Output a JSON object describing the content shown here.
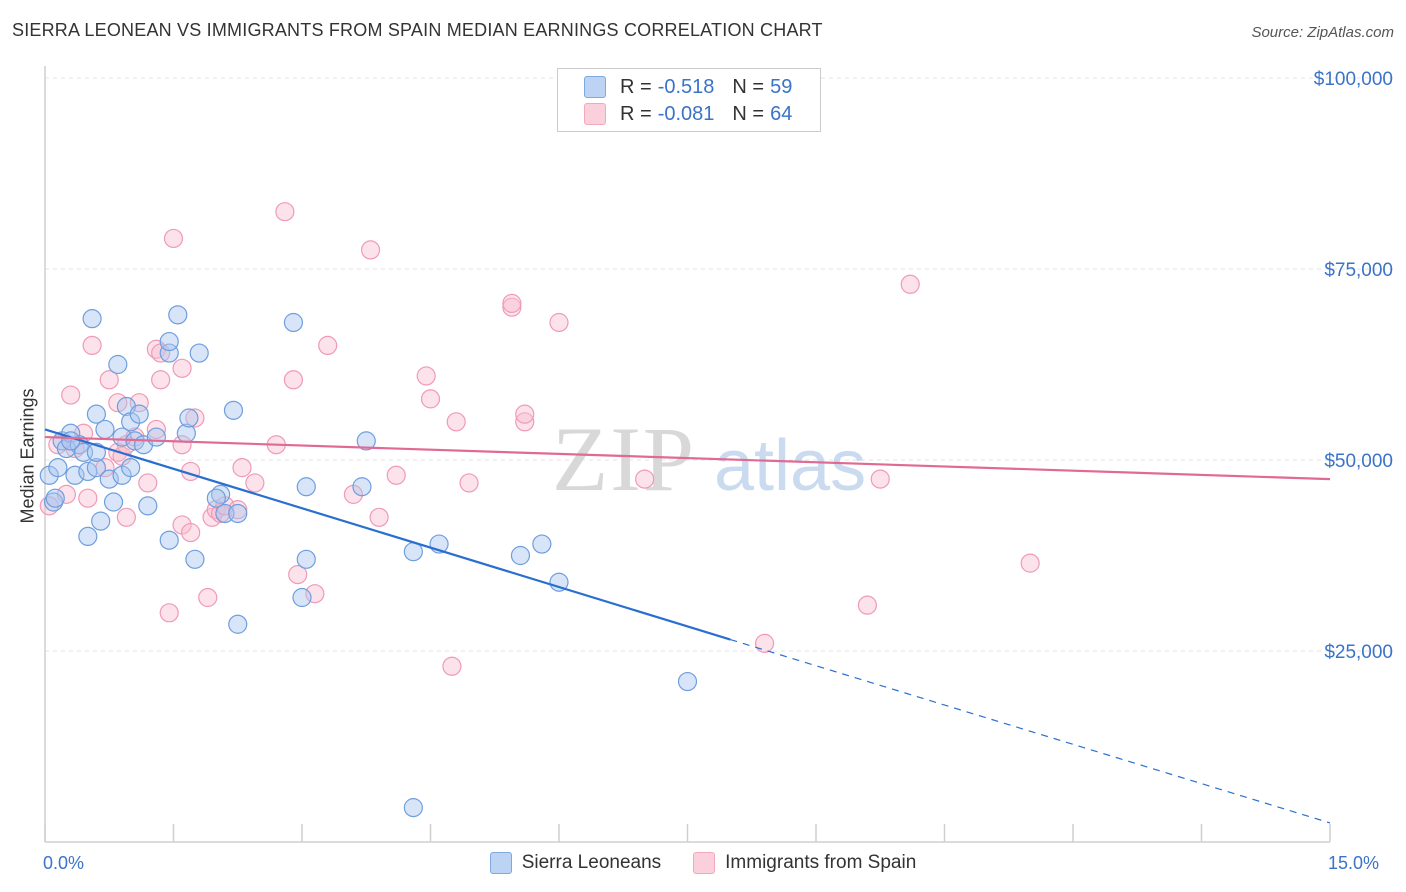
{
  "title": "SIERRA LEONEAN VS IMMIGRANTS FROM SPAIN MEDIAN EARNINGS CORRELATION CHART",
  "source": "Source: ZipAtlas.com",
  "legend": {
    "r_label": "R =",
    "n_label": "N =",
    "series": [
      {
        "r": "-0.518",
        "n": "59"
      },
      {
        "r": "-0.081",
        "n": "64"
      }
    ]
  },
  "watermark": {
    "zip": "ZIP",
    "atlas": "atlas"
  },
  "chart_data": {
    "type": "scatter",
    "title": "SIERRA LEONEAN VS IMMIGRANTS FROM SPAIN MEDIAN EARNINGS CORRELATION CHART",
    "xlabel": "",
    "ylabel": "Median Earnings",
    "xlim": [
      0,
      15
    ],
    "ylim": [
      0,
      105000
    ],
    "x_tick_labels": [
      "0.0%",
      "15.0%"
    ],
    "y_ticks": [
      25000,
      50000,
      75000,
      100000
    ],
    "y_tick_labels": [
      "$25,000",
      "$50,000",
      "$75,000",
      "$100,000"
    ],
    "grid": "horizontal dashed",
    "series": [
      {
        "name": "Sierra Leoneans",
        "color": "#7fa8e0",
        "line_color": "#2a6fd0",
        "points": [
          [
            0.05,
            48000
          ],
          [
            0.1,
            44500
          ],
          [
            0.12,
            45000
          ],
          [
            0.2,
            52500
          ],
          [
            0.25,
            51500
          ],
          [
            0.3,
            53500
          ],
          [
            0.35,
            48000
          ],
          [
            0.4,
            52000
          ],
          [
            0.45,
            51000
          ],
          [
            0.5,
            48500
          ],
          [
            0.5,
            40000
          ],
          [
            0.55,
            68500
          ],
          [
            0.6,
            49000
          ],
          [
            0.6,
            56000
          ],
          [
            0.65,
            42000
          ],
          [
            0.7,
            54000
          ],
          [
            0.75,
            47500
          ],
          [
            0.8,
            44500
          ],
          [
            0.85,
            62500
          ],
          [
            0.9,
            48000
          ],
          [
            0.9,
            53000
          ],
          [
            0.95,
            57000
          ],
          [
            1.0,
            55000
          ],
          [
            1.05,
            52500
          ],
          [
            1.1,
            56000
          ],
          [
            1.15,
            52000
          ],
          [
            1.2,
            44000
          ],
          [
            1.3,
            53000
          ],
          [
            1.45,
            39500
          ],
          [
            1.45,
            64000
          ],
          [
            1.45,
            65500
          ],
          [
            1.55,
            69000
          ],
          [
            1.65,
            53500
          ],
          [
            1.68,
            55500
          ],
          [
            1.75,
            37000
          ],
          [
            1.8,
            64000
          ],
          [
            2.05,
            45500
          ],
          [
            2.1,
            43000
          ],
          [
            2.2,
            56500
          ],
          [
            2.25,
            43000
          ],
          [
            2.25,
            28500
          ],
          [
            2.9,
            68000
          ],
          [
            3.0,
            32000
          ],
          [
            3.05,
            37000
          ],
          [
            3.05,
            46500
          ],
          [
            3.7,
            46500
          ],
          [
            3.75,
            52500
          ],
          [
            4.3,
            4500
          ],
          [
            4.3,
            38000
          ],
          [
            4.6,
            39000
          ],
          [
            5.55,
            37500
          ],
          [
            5.8,
            39000
          ],
          [
            6.0,
            34000
          ],
          [
            7.5,
            21000
          ],
          [
            0.15,
            49000
          ],
          [
            0.3,
            52500
          ],
          [
            0.6,
            51000
          ],
          [
            1.0,
            49000
          ],
          [
            2.0,
            45000
          ]
        ],
        "trend": {
          "x0": 0,
          "y0": 54000,
          "x1": 8.0,
          "y1": 26500,
          "dashed_to_x": 15,
          "dashed_to_y": 2500
        }
      },
      {
        "name": "Immigrants from Spain",
        "color": "#f4a8c0",
        "line_color": "#e06a93",
        "points": [
          [
            0.05,
            44000
          ],
          [
            0.15,
            52000
          ],
          [
            0.3,
            58500
          ],
          [
            0.35,
            51500
          ],
          [
            0.45,
            53500
          ],
          [
            0.55,
            65000
          ],
          [
            0.5,
            45000
          ],
          [
            0.7,
            49000
          ],
          [
            0.75,
            60500
          ],
          [
            0.85,
            57500
          ],
          [
            0.85,
            51000
          ],
          [
            0.9,
            50500
          ],
          [
            0.95,
            52000
          ],
          [
            0.95,
            42500
          ],
          [
            1.05,
            53000
          ],
          [
            1.1,
            57500
          ],
          [
            1.2,
            47000
          ],
          [
            1.3,
            54000
          ],
          [
            1.3,
            64500
          ],
          [
            1.35,
            64000
          ],
          [
            1.35,
            60500
          ],
          [
            1.45,
            30000
          ],
          [
            1.5,
            79000
          ],
          [
            1.6,
            52000
          ],
          [
            1.6,
            41500
          ],
          [
            1.6,
            62000
          ],
          [
            1.7,
            40500
          ],
          [
            1.7,
            48500
          ],
          [
            1.75,
            55500
          ],
          [
            1.9,
            32000
          ],
          [
            1.95,
            42500
          ],
          [
            2.0,
            43500
          ],
          [
            2.05,
            43000
          ],
          [
            2.1,
            44000
          ],
          [
            2.25,
            43500
          ],
          [
            2.3,
            49000
          ],
          [
            2.45,
            47000
          ],
          [
            2.7,
            52000
          ],
          [
            2.8,
            82500
          ],
          [
            2.9,
            60500
          ],
          [
            2.95,
            35000
          ],
          [
            3.15,
            32500
          ],
          [
            3.3,
            65000
          ],
          [
            3.6,
            45500
          ],
          [
            3.8,
            77500
          ],
          [
            3.9,
            42500
          ],
          [
            4.1,
            48000
          ],
          [
            4.45,
            61000
          ],
          [
            4.5,
            58000
          ],
          [
            4.75,
            23000
          ],
          [
            4.8,
            55000
          ],
          [
            4.95,
            47000
          ],
          [
            5.45,
            70000
          ],
          [
            5.45,
            70500
          ],
          [
            5.6,
            55000
          ],
          [
            5.6,
            56000
          ],
          [
            6.0,
            68000
          ],
          [
            7.0,
            47500
          ],
          [
            8.4,
            26000
          ],
          [
            9.6,
            31000
          ],
          [
            9.75,
            47500
          ],
          [
            10.1,
            73000
          ],
          [
            11.5,
            36500
          ],
          [
            0.25,
            45500
          ]
        ],
        "trend": {
          "x0": 0,
          "y0": 53000,
          "x1": 15,
          "y1": 47500
        }
      }
    ]
  },
  "bottom_legend": {
    "items": [
      {
        "label": "Sierra Leoneans"
      },
      {
        "label": "Immigrants from Spain"
      }
    ]
  }
}
